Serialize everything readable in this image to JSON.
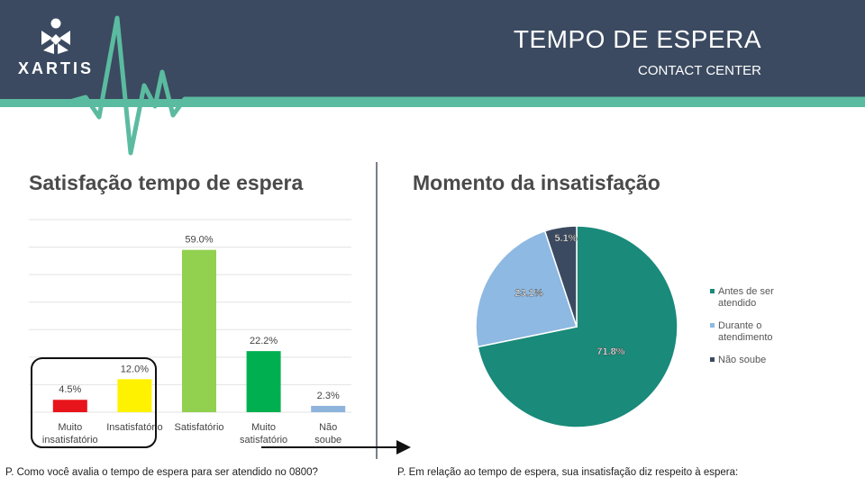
{
  "header": {
    "brand": "XARTIS",
    "title": "TEMPO DE ESPERA",
    "subtitle": "CONTACT CENTER"
  },
  "colors": {
    "header_bg": "#3b4a60",
    "accent_teal": "#5bbba0",
    "pie_teal": "#1a8a7a"
  },
  "left_panel": {
    "title": "Satisfação tempo de espera",
    "question": "P. Como você avalia o tempo de espera para ser atendido no 0800?"
  },
  "right_panel": {
    "title": "Momento da insatisfação",
    "question": "P. Em relação ao tempo de espera, sua insatisfação diz respeito à espera:"
  },
  "chart_data": [
    {
      "type": "bar",
      "categories": [
        "Muito insatisfatório",
        "Insatisfatório",
        "Satisfatório",
        "Muito satisfatório",
        "Não soube"
      ],
      "values": [
        4.5,
        12.0,
        59.0,
        22.2,
        2.3
      ],
      "labels": [
        "4.5%",
        "12.0%",
        "59.0%",
        "22.2%",
        "2.3%"
      ],
      "colors": [
        "#e8141b",
        "#fff200",
        "#92d050",
        "#00b050",
        "#8fb4dc"
      ],
      "ylim": [
        0,
        70
      ],
      "grid": true,
      "legend": "none"
    },
    {
      "type": "pie",
      "categories": [
        "Antes de ser atendido",
        "Durante o atendimento",
        "Não soube"
      ],
      "values": [
        71.8,
        23.1,
        5.1
      ],
      "labels": [
        "71.8%",
        "23.1%",
        "5.1%"
      ],
      "colors": [
        "#1a8a7a",
        "#8db9e2",
        "#3b4a60"
      ],
      "legend": "right"
    }
  ]
}
